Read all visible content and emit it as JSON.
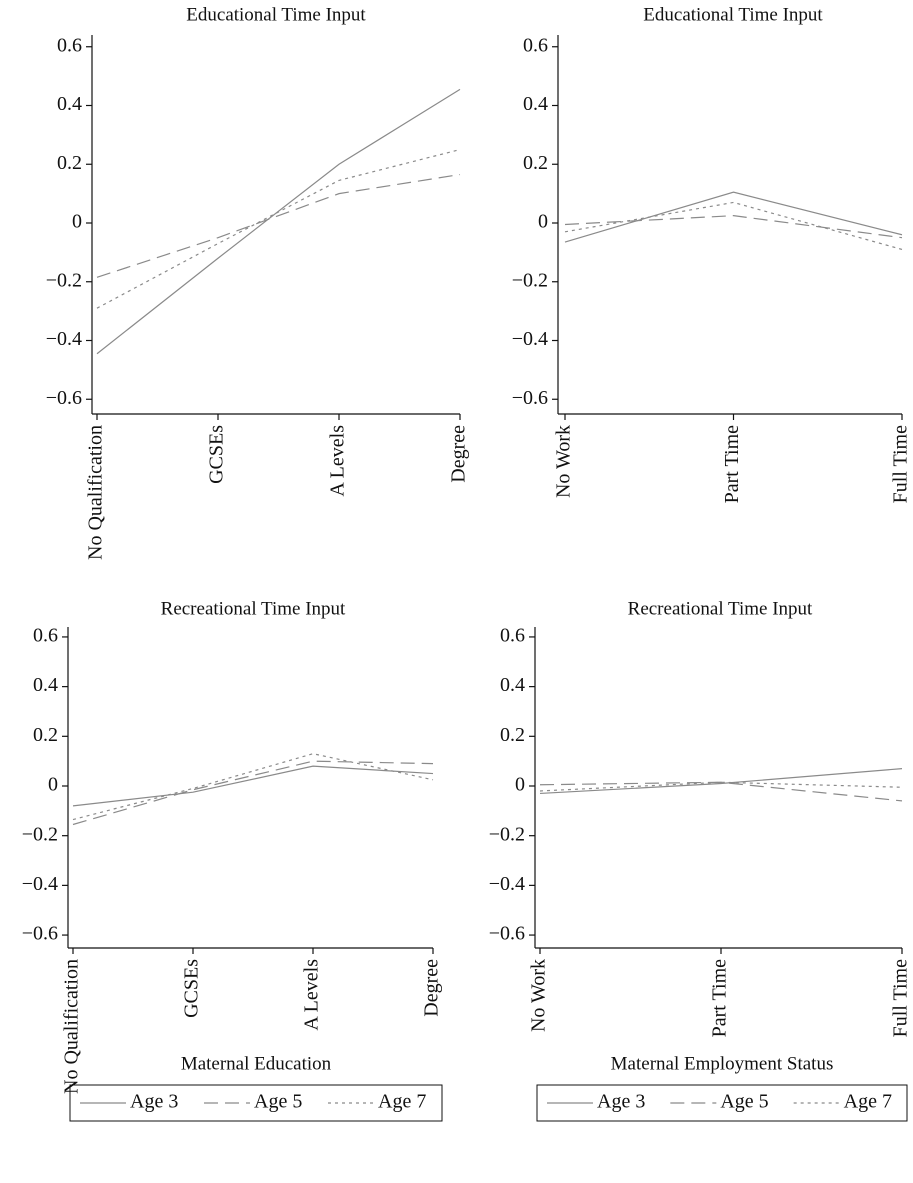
{
  "chart_data": [
    {
      "type": "line",
      "title": "Educational Time Input",
      "categories": [
        "No Qualification",
        "GCSEs",
        "A Levels",
        "Degree"
      ],
      "series": [
        {
          "name": "Age 3",
          "color": "#8a8a8a",
          "style": "solid",
          "values": [
            -0.445,
            -0.12,
            0.2,
            0.455
          ]
        },
        {
          "name": "Age 5",
          "color": "#8a8a8a",
          "style": "dashed",
          "values": [
            -0.185,
            -0.05,
            0.1,
            0.165
          ]
        },
        {
          "name": "Age 7",
          "color": "#8a8a8a",
          "style": "dotted",
          "values": [
            -0.29,
            -0.07,
            0.145,
            0.25
          ]
        }
      ],
      "ylim": [
        -0.64,
        0.64
      ],
      "yticks": [
        {
          "value": -0.6,
          "label": "−0.6"
        },
        {
          "value": -0.4,
          "label": "−0.4"
        },
        {
          "value": -0.2,
          "label": "−0.2"
        },
        0,
        0.2,
        0.4,
        0.6
      ],
      "legend": false
    },
    {
      "type": "line",
      "title": "Educational Time Input",
      "categories": [
        "No Work",
        "Part Time",
        "Full Time"
      ],
      "series": [
        {
          "name": "Age 3",
          "color": "#8a8a8a",
          "style": "solid",
          "values": [
            -0.065,
            0.105,
            -0.04
          ]
        },
        {
          "name": "Age 5",
          "color": "#8a8a8a",
          "style": "dashed",
          "values": [
            -0.005,
            0.025,
            -0.05
          ]
        },
        {
          "name": "Age 7",
          "color": "#8a8a8a",
          "style": "dotted",
          "values": [
            -0.03,
            0.07,
            -0.09
          ]
        }
      ],
      "ylim": [
        -0.64,
        0.64
      ],
      "yticks": [
        {
          "value": -0.6,
          "label": "−0.6"
        },
        {
          "value": -0.4,
          "label": "−0.4"
        },
        {
          "value": -0.2,
          "label": "−0.2"
        },
        0,
        0.2,
        0.4,
        0.6
      ],
      "legend": false
    },
    {
      "type": "line",
      "title": "Recreational Time Input",
      "xlabel": "Maternal Education",
      "categories": [
        "No Qualification",
        "GCSEs",
        "A Levels",
        "Degree"
      ],
      "series": [
        {
          "name": "Age 3",
          "color": "#8a8a8a",
          "style": "solid",
          "values": [
            -0.08,
            -0.025,
            0.08,
            0.05
          ]
        },
        {
          "name": "Age 5",
          "color": "#8a8a8a",
          "style": "dashed",
          "values": [
            -0.155,
            -0.015,
            0.1,
            0.09
          ]
        },
        {
          "name": "Age 7",
          "color": "#8a8a8a",
          "style": "dotted",
          "values": [
            -0.135,
            -0.01,
            0.13,
            0.025
          ]
        }
      ],
      "ylim": [
        -0.64,
        0.64
      ],
      "yticks": [
        {
          "value": -0.6,
          "label": "−0.6"
        },
        {
          "value": -0.4,
          "label": "−0.4"
        },
        {
          "value": -0.2,
          "label": "−0.2"
        },
        0,
        0.2,
        0.4,
        0.6
      ],
      "legend": true
    },
    {
      "type": "line",
      "title": "Recreational Time Input",
      "xlabel": "Maternal Employment Status",
      "categories": [
        "No Work",
        "Part Time",
        "Full Time"
      ],
      "series": [
        {
          "name": "Age 3",
          "color": "#8a8a8a",
          "style": "solid",
          "values": [
            -0.03,
            0.01,
            0.07
          ]
        },
        {
          "name": "Age 5",
          "color": "#8a8a8a",
          "style": "dashed",
          "values": [
            0.005,
            0.015,
            -0.06
          ]
        },
        {
          "name": "Age 7",
          "color": "#8a8a8a",
          "style": "dotted",
          "values": [
            -0.02,
            0.015,
            -0.005
          ]
        }
      ],
      "ylim": [
        -0.64,
        0.64
      ],
      "yticks": [
        {
          "value": -0.6,
          "label": "−0.6"
        },
        {
          "value": -0.4,
          "label": "−0.4"
        },
        {
          "value": -0.2,
          "label": "−0.2"
        },
        0,
        0.2,
        0.4,
        0.6
      ],
      "legend": true
    }
  ]
}
